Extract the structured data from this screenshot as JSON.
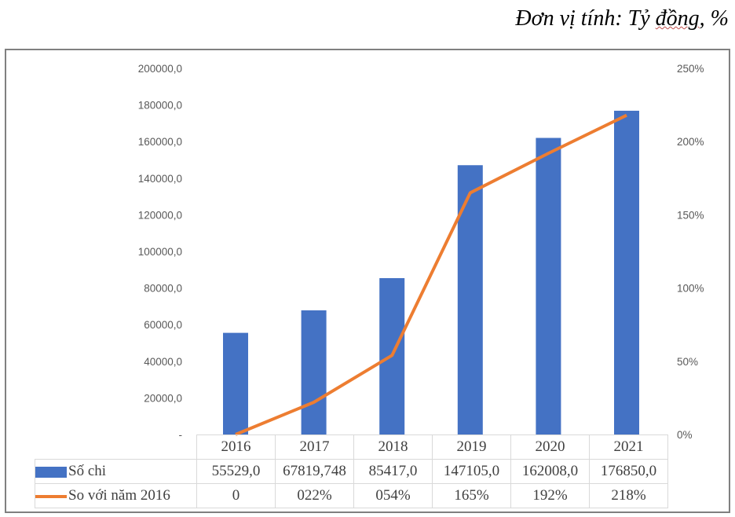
{
  "unit_note": {
    "prefix": "Đơn vị tính: Tỷ ",
    "underlined": "đồng",
    "suffix": ", %"
  },
  "chart_data": {
    "type": "bar+line",
    "categories": [
      "2016",
      "2017",
      "2018",
      "2019",
      "2020",
      "2021"
    ],
    "series": [
      {
        "name": "Số chi",
        "type": "bar",
        "axis": "left",
        "color": "#4472c4",
        "values": [
          55529.0,
          67819.748,
          85417.0,
          147105.0,
          162008.0,
          176850.0
        ],
        "labels": [
          "55529,0",
          "67819,748",
          "85417,0",
          "147105,0",
          "162008,0",
          "176850,0"
        ]
      },
      {
        "name": "So với năm 2016",
        "type": "line",
        "axis": "right",
        "color": "#ed7d31",
        "values": [
          0,
          22,
          54,
          165,
          192,
          218
        ],
        "labels": [
          "0",
          "022%",
          "054%",
          "165%",
          "192%",
          "218%"
        ]
      }
    ],
    "left_axis": {
      "range": [
        0,
        200000
      ],
      "ticks": [
        "-",
        "20000,0",
        "40000,0",
        "60000,0",
        "80000,0",
        "100000,0",
        "120000,0",
        "140000,0",
        "160000,0",
        "180000,0",
        "200000,0"
      ]
    },
    "right_axis": {
      "range": [
        0,
        250
      ],
      "ticks": [
        "0%",
        "50%",
        "100%",
        "150%",
        "200%",
        "250%"
      ]
    },
    "legend": "data-table",
    "grid": false
  }
}
